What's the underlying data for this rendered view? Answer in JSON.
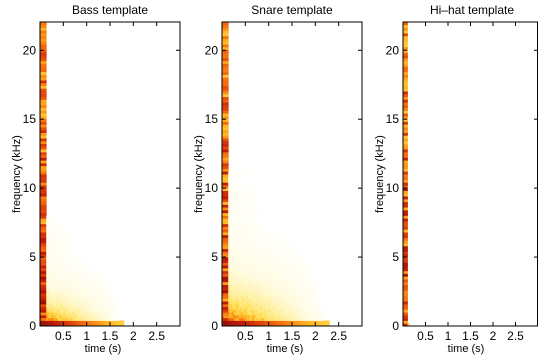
{
  "colors": {
    "background": "#ffffff",
    "axis": "#000000",
    "colormap": [
      "#ffffff",
      "#fffbe0",
      "#fff1a6",
      "#ffdf5a",
      "#ffb31f",
      "#f2650e",
      "#c41e0a",
      "#7a0a05"
    ]
  },
  "chart_data": [
    {
      "type": "heatmap",
      "title": "Bass template",
      "xlabel": "time (s)",
      "ylabel": "frequency (kHz)",
      "xlim": [
        0,
        3.0
      ],
      "ylim": [
        0,
        22.05
      ],
      "xticks": [
        0.5,
        1,
        1.5,
        2,
        2.5
      ],
      "xtick_labels": [
        "0.5",
        "1",
        "1.5",
        "2",
        "2.5"
      ],
      "yticks": [
        0,
        5,
        10,
        15,
        20
      ],
      "ytick_labels": [
        "0",
        "5",
        "10",
        "15",
        "20"
      ],
      "colormap": "hot (reversed, white = low energy)",
      "energy_profile": {
        "onset_s": 0,
        "decay_end_s": 1.8,
        "strong_low_freq_band_khz": [
          0,
          0.4
        ],
        "onset_strip_khz": [
          0,
          22
        ],
        "onset_strip_width_s": 0.12,
        "low_freq_decay_limit_khz": 5,
        "note": "energy concentrated at onset and in the lowest frequencies, decaying to about 1.8 s"
      }
    },
    {
      "type": "heatmap",
      "title": "Snare template",
      "xlabel": "time (s)",
      "ylabel": "frequency (kHz)",
      "xlim": [
        0,
        3.0
      ],
      "ylim": [
        0,
        22.05
      ],
      "xticks": [
        0.5,
        1,
        1.5,
        2,
        2.5
      ],
      "xtick_labels": [
        "0.5",
        "1",
        "1.5",
        "2",
        "2.5"
      ],
      "yticks": [
        0,
        5,
        10,
        15,
        20
      ],
      "ytick_labels": [
        "0",
        "5",
        "10",
        "15",
        "20"
      ],
      "colormap": "hot (reversed, white = low energy)",
      "energy_profile": {
        "onset_s": 0,
        "decay_end_s": 2.3,
        "strong_low_freq_band_khz": [
          0,
          0.4
        ],
        "onset_strip_khz": [
          0,
          22
        ],
        "onset_strip_width_s": 0.12,
        "low_freq_decay_limit_khz": 7,
        "note": "broadband onset, energy below ~7 kHz decaying over about 0.6 s, low band persisting to about 2.3 s"
      }
    },
    {
      "type": "heatmap",
      "title": "Hi–hat template",
      "xlabel": "time (s)",
      "ylabel": "frequency (kHz)",
      "xlim": [
        0,
        3.0
      ],
      "ylim": [
        0,
        22.05
      ],
      "xticks": [
        0.5,
        1,
        1.5,
        2,
        2.5
      ],
      "xtick_labels": [
        "0.5",
        "1",
        "1.5",
        "2",
        "2.5"
      ],
      "yticks": [
        0,
        5,
        10,
        15,
        20
      ],
      "ytick_labels": [
        "0",
        "5",
        "10",
        "15",
        "20"
      ],
      "colormap": "hot (reversed, white = low energy)",
      "energy_profile": {
        "onset_s": 0,
        "decay_end_s": 0.12,
        "strong_low_freq_band_khz": [
          0,
          0.15
        ],
        "onset_strip_khz": [
          0,
          22
        ],
        "onset_strip_width_s": 0.1,
        "low_freq_decay_limit_khz": 2,
        "note": "very short broadband burst at onset only"
      }
    }
  ]
}
